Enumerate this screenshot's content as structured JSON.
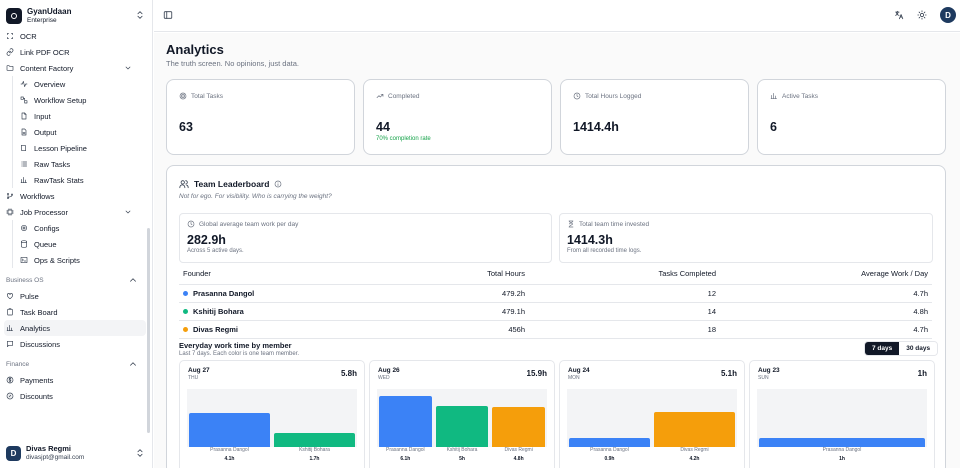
{
  "brand": {
    "name": "GyanUdaan",
    "plan": "Enterprise"
  },
  "nav": {
    "ocr": "OCR",
    "link_pdf_ocr": "Link PDF OCR",
    "content_factory": "Content Factory",
    "content_factory_items": [
      "Overview",
      "Workflow Setup",
      "Input",
      "Output",
      "Lesson Pipeline",
      "Raw Tasks",
      "RawTask Stats"
    ],
    "workflows": "Workflows",
    "job_processor": "Job Processor",
    "job_processor_items": [
      "Configs",
      "Queue",
      "Ops & Scripts"
    ],
    "business_os": "Business OS",
    "business_items": [
      "Pulse",
      "Task Board",
      "Analytics",
      "Discussions"
    ],
    "finance": "Finance",
    "finance_items": [
      "Payments",
      "Discounts"
    ]
  },
  "user": {
    "initial": "D",
    "name": "Divas Regmi",
    "email": "divasjpt@gmail.com"
  },
  "topbar": {
    "avatar_initial": "D"
  },
  "page": {
    "title": "Analytics",
    "subtitle": "The truth screen. No opinions, just data."
  },
  "stats": [
    {
      "label": "Total Tasks",
      "value": "63",
      "icon": "target-icon"
    },
    {
      "label": "Completed",
      "value": "44",
      "note": "70% completion rate",
      "icon": "trend-up-icon"
    },
    {
      "label": "Total Hours Logged",
      "value": "1414.4h",
      "icon": "clock-icon"
    },
    {
      "label": "Active Tasks",
      "value": "6",
      "icon": "bar-chart-icon"
    }
  ],
  "leaderboard": {
    "title": "Team Leaderboard",
    "subtitle": "Not for ego. For visibility. Who is carrying the weight?",
    "avg": {
      "label": "Global average team work per day",
      "value": "282.9h",
      "note": "Across 5 active days."
    },
    "total": {
      "label": "Total team time invested",
      "value": "1414.3h",
      "note": "From all recorded time logs."
    },
    "columns": [
      "Founder",
      "Total Hours",
      "Tasks Completed",
      "Average Work / Day"
    ],
    "rows": [
      {
        "name": "Prasanna Dangol",
        "hours": "479.2h",
        "tasks": "12",
        "avg": "4.7h",
        "color": "#3b82f6"
      },
      {
        "name": "Kshitij Bohara",
        "hours": "479.1h",
        "tasks": "14",
        "avg": "4.8h",
        "color": "#10b981"
      },
      {
        "name": "Divas Regmi",
        "hours": "456h",
        "tasks": "18",
        "avg": "4.7h",
        "color": "#f59e0b"
      }
    ]
  },
  "everyday": {
    "title": "Everyday work time by member",
    "subtitle": "Last 7 days. Each color is one team member.",
    "toggle": [
      "7 days",
      "30 days"
    ],
    "selected": "7 days",
    "days": [
      {
        "date": "Aug 27",
        "weekday": "THU",
        "total": "5.8h",
        "bars": [
          {
            "name": "Prasanna Dangol",
            "value": "4.1h",
            "hours": 4.1,
            "color": "#3b82f6"
          },
          {
            "name": "Kshitij Bohara",
            "value": "1.7h",
            "hours": 1.7,
            "color": "#10b981"
          }
        ]
      },
      {
        "date": "Aug 26",
        "weekday": "WED",
        "total": "15.9h",
        "bars": [
          {
            "name": "Prasanna Dangol",
            "value": "6.1h",
            "hours": 6.1,
            "color": "#3b82f6"
          },
          {
            "name": "Kshitij Bohara",
            "value": "5h",
            "hours": 5,
            "color": "#10b981"
          },
          {
            "name": "Divas Regmi",
            "value": "4.8h",
            "hours": 4.8,
            "color": "#f59e0b"
          }
        ]
      },
      {
        "date": "Aug 24",
        "weekday": "MON",
        "total": "5.1h",
        "bars": [
          {
            "name": "Prasanna Dangol",
            "value": "0.9h",
            "hours": 0.9,
            "color": "#3b82f6"
          },
          {
            "name": "Divas Regmi",
            "value": "4.2h",
            "hours": 4.2,
            "color": "#f59e0b"
          }
        ]
      },
      {
        "date": "Aug 23",
        "weekday": "SUN",
        "total": "1h",
        "bars": [
          {
            "name": "Prasanna Dangol",
            "value": "1h",
            "hours": 1,
            "color": "#3b82f6"
          }
        ]
      }
    ]
  }
}
